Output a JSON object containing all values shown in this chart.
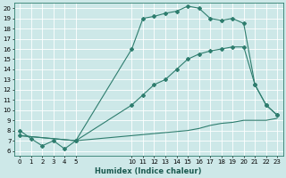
{
  "bg_color": "#cde8e8",
  "grid_color": "#ffffff",
  "line_color": "#2e7d6e",
  "xlabel": "Humidex (Indice chaleur)",
  "xlim": [
    -0.5,
    23.5
  ],
  "ylim": [
    5.5,
    20.5
  ],
  "yticks": [
    6,
    7,
    8,
    9,
    10,
    11,
    12,
    13,
    14,
    15,
    16,
    17,
    18,
    19,
    20
  ],
  "xticks": [
    0,
    1,
    2,
    3,
    4,
    5,
    10,
    11,
    12,
    13,
    14,
    15,
    16,
    17,
    18,
    19,
    20,
    21,
    22,
    23
  ],
  "line1_x": [
    0,
    1,
    2,
    3,
    4,
    5,
    10,
    11,
    12,
    13,
    14,
    15,
    16,
    17,
    18,
    19,
    20,
    21,
    22,
    23
  ],
  "line1_y": [
    8.0,
    7.2,
    6.5,
    7.0,
    6.2,
    7.0,
    16.0,
    19.0,
    19.2,
    19.5,
    19.7,
    20.2,
    20.0,
    19.0,
    18.8,
    19.0,
    18.5,
    12.5,
    10.5,
    9.5
  ],
  "line2_x": [
    0,
    5,
    10,
    11,
    12,
    13,
    14,
    15,
    16,
    17,
    18,
    19,
    20,
    21,
    22,
    23
  ],
  "line2_y": [
    7.5,
    7.0,
    10.5,
    11.5,
    12.5,
    13.0,
    14.0,
    15.0,
    15.5,
    15.8,
    16.0,
    16.2,
    16.2,
    12.5,
    10.5,
    9.5
  ],
  "line3_x": [
    0,
    5,
    10,
    15,
    16,
    17,
    18,
    19,
    20,
    21,
    22,
    23
  ],
  "line3_y": [
    7.5,
    7.0,
    7.5,
    8.0,
    8.2,
    8.5,
    8.7,
    8.8,
    9.0,
    9.0,
    9.0,
    9.2
  ]
}
